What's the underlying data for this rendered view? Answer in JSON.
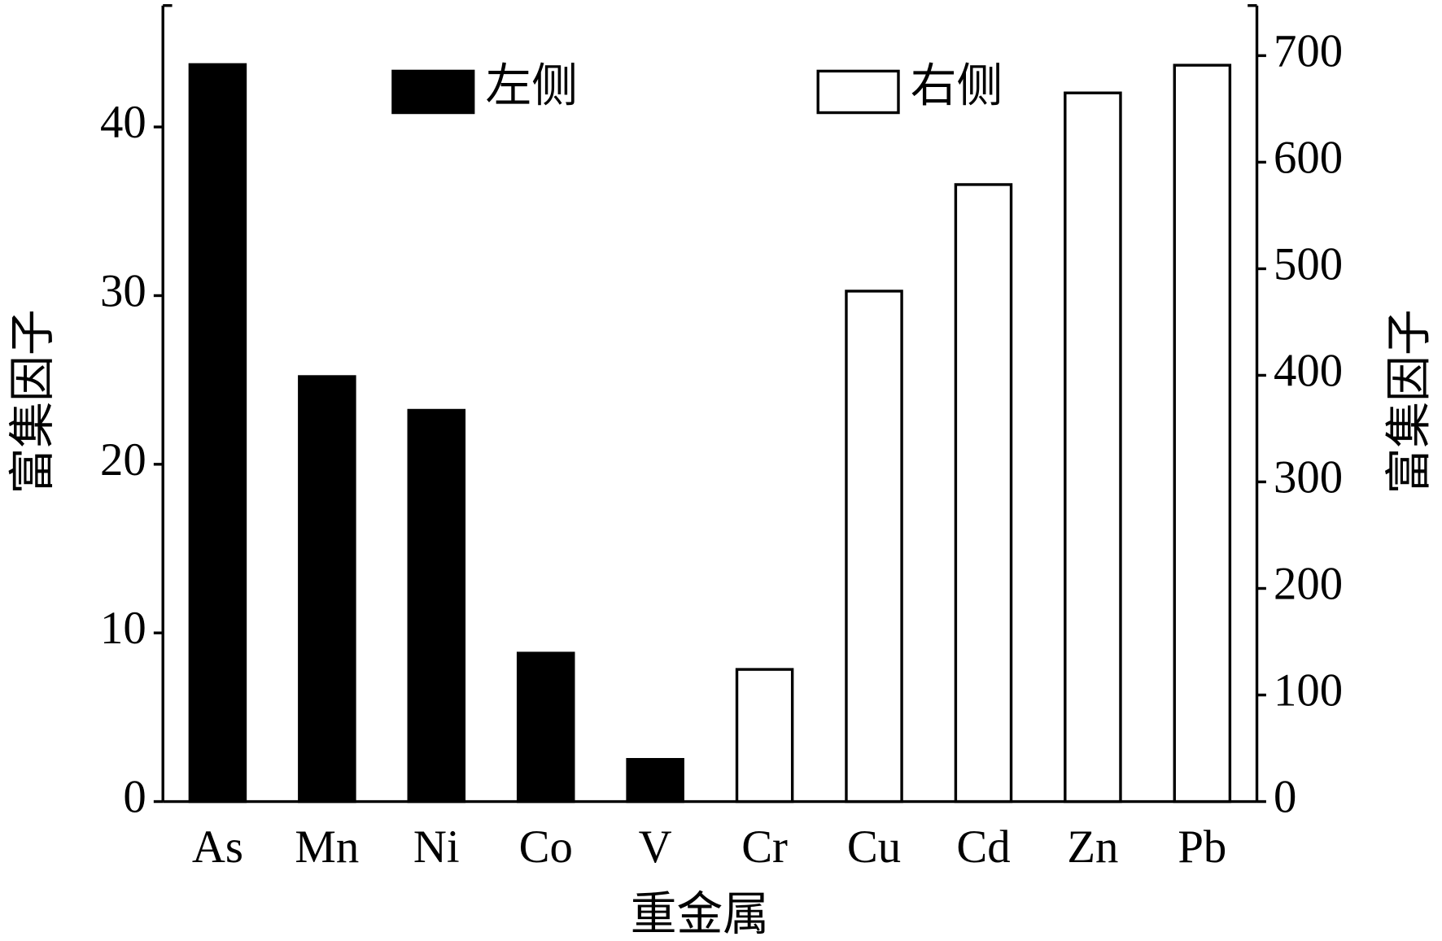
{
  "chart_data": {
    "type": "bar",
    "x_label": "重金属",
    "y_label": "富集因子",
    "y2_label": "富集因子",
    "categories": [
      "As",
      "Mn",
      "Ni",
      "Co",
      "V",
      "Cr",
      "Cu",
      "Cd",
      "Zn",
      "Pb"
    ],
    "series": [
      {
        "name": "左侧",
        "color": "#000000",
        "values": [
          43.7,
          25.2,
          23.2,
          8.8,
          2.5,
          null,
          null,
          null,
          null,
          null
        ]
      },
      {
        "name": "右侧",
        "color": "#ffffff",
        "axis": "y2",
        "values": [
          null,
          null,
          null,
          null,
          null,
          124,
          479,
          579,
          665,
          691
        ]
      }
    ],
    "ylim": [
      0,
      47.2
    ],
    "yticks": [
      0,
      10,
      20,
      30,
      40
    ],
    "y2lim": [
      0,
      747
    ],
    "y2ticks": [
      0,
      100,
      200,
      300,
      400,
      500,
      600,
      700
    ],
    "legend": "top"
  }
}
